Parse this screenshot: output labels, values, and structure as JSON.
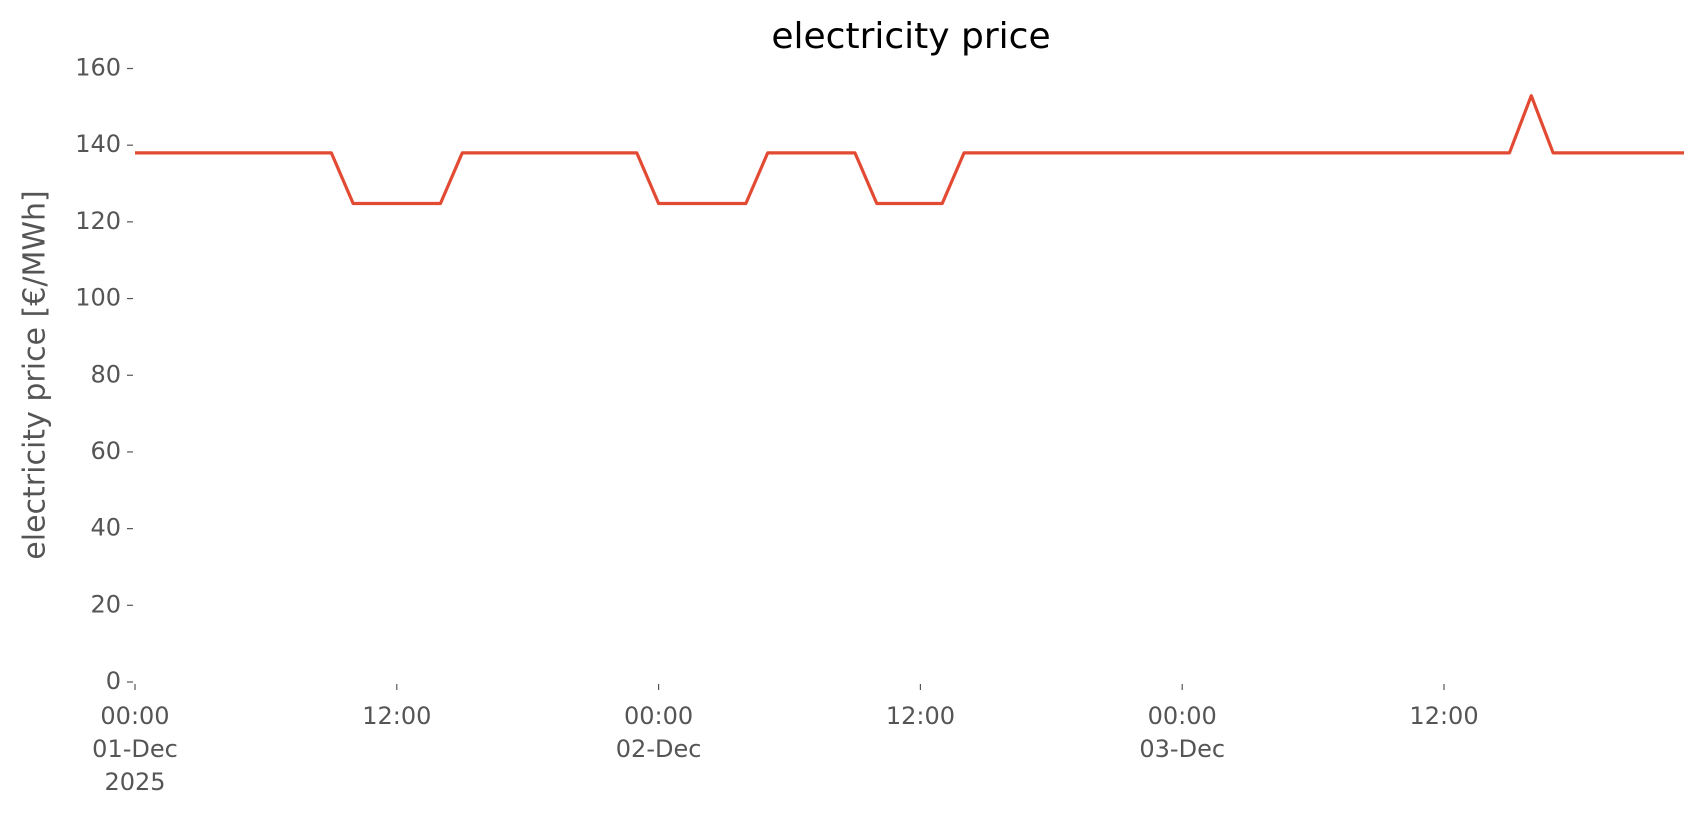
{
  "chart_data": {
    "type": "line",
    "title": "electricity price",
    "ylabel": "electricity price [€/MWh]",
    "x": [
      "2025-12-01 00:00",
      "2025-12-01 01:00",
      "2025-12-01 02:00",
      "2025-12-01 03:00",
      "2025-12-01 04:00",
      "2025-12-01 05:00",
      "2025-12-01 06:00",
      "2025-12-01 07:00",
      "2025-12-01 08:00",
      "2025-12-01 09:00",
      "2025-12-01 10:00",
      "2025-12-01 11:00",
      "2025-12-01 12:00",
      "2025-12-01 13:00",
      "2025-12-01 14:00",
      "2025-12-01 15:00",
      "2025-12-01 16:00",
      "2025-12-01 17:00",
      "2025-12-01 18:00",
      "2025-12-01 19:00",
      "2025-12-01 20:00",
      "2025-12-01 21:00",
      "2025-12-01 22:00",
      "2025-12-01 23:00",
      "2025-12-02 00:00",
      "2025-12-02 01:00",
      "2025-12-02 02:00",
      "2025-12-02 03:00",
      "2025-12-02 04:00",
      "2025-12-02 05:00",
      "2025-12-02 06:00",
      "2025-12-02 07:00",
      "2025-12-02 08:00",
      "2025-12-02 09:00",
      "2025-12-02 10:00",
      "2025-12-02 11:00",
      "2025-12-02 12:00",
      "2025-12-02 13:00",
      "2025-12-02 14:00",
      "2025-12-02 15:00",
      "2025-12-02 16:00",
      "2025-12-02 17:00",
      "2025-12-02 18:00",
      "2025-12-02 19:00",
      "2025-12-02 20:00",
      "2025-12-02 21:00",
      "2025-12-02 22:00",
      "2025-12-02 23:00",
      "2025-12-03 00:00",
      "2025-12-03 01:00",
      "2025-12-03 02:00",
      "2025-12-03 03:00",
      "2025-12-03 04:00",
      "2025-12-03 05:00",
      "2025-12-03 06:00",
      "2025-12-03 07:00",
      "2025-12-03 08:00",
      "2025-12-03 09:00",
      "2025-12-03 10:00",
      "2025-12-03 11:00",
      "2025-12-03 12:00",
      "2025-12-03 13:00",
      "2025-12-03 14:00",
      "2025-12-03 15:00",
      "2025-12-03 16:00",
      "2025-12-03 17:00",
      "2025-12-03 18:00",
      "2025-12-03 19:00",
      "2025-12-03 20:00",
      "2025-12-03 21:00",
      "2025-12-03 22:00",
      "2025-12-03 23:00"
    ],
    "series": [
      {
        "color": "#e24a33",
        "values": [
          138,
          138,
          138,
          138,
          138,
          138,
          138,
          138,
          138,
          138,
          124.8,
          124.8,
          124.8,
          124.8,
          124.8,
          138,
          138,
          138,
          138,
          138,
          138,
          138,
          138,
          138,
          124.8,
          124.8,
          124.8,
          124.8,
          124.8,
          138,
          138,
          138,
          138,
          138,
          124.8,
          124.8,
          124.8,
          124.8,
          138,
          138,
          138,
          138,
          138,
          138,
          138,
          138,
          138,
          138,
          138,
          138,
          138,
          138,
          138,
          138,
          138,
          138,
          138,
          138,
          138,
          138,
          138,
          138,
          138,
          138,
          152.9,
          138,
          138,
          138,
          138,
          138,
          138,
          138
        ]
      }
    ],
    "xlim": [
      "2025-12-01 00:00",
      "2025-12-03 23:00"
    ],
    "xticks": [
      {
        "value": "2025-12-01 00:00",
        "label": [
          "00:00",
          "01-Dec",
          "2025"
        ]
      },
      {
        "value": "2025-12-01 12:00",
        "label": [
          "12:00"
        ]
      },
      {
        "value": "2025-12-02 00:00",
        "label": [
          "00:00",
          "02-Dec"
        ]
      },
      {
        "value": "2025-12-02 12:00",
        "label": [
          "12:00"
        ]
      },
      {
        "value": "2025-12-03 00:00",
        "label": [
          "00:00",
          "03-Dec"
        ]
      },
      {
        "value": "2025-12-03 12:00",
        "label": [
          "12:00"
        ]
      }
    ],
    "ylim": [
      0,
      160
    ],
    "yticks": [
      0,
      20,
      40,
      60,
      80,
      100,
      120,
      140,
      160
    ],
    "grid": false
  }
}
